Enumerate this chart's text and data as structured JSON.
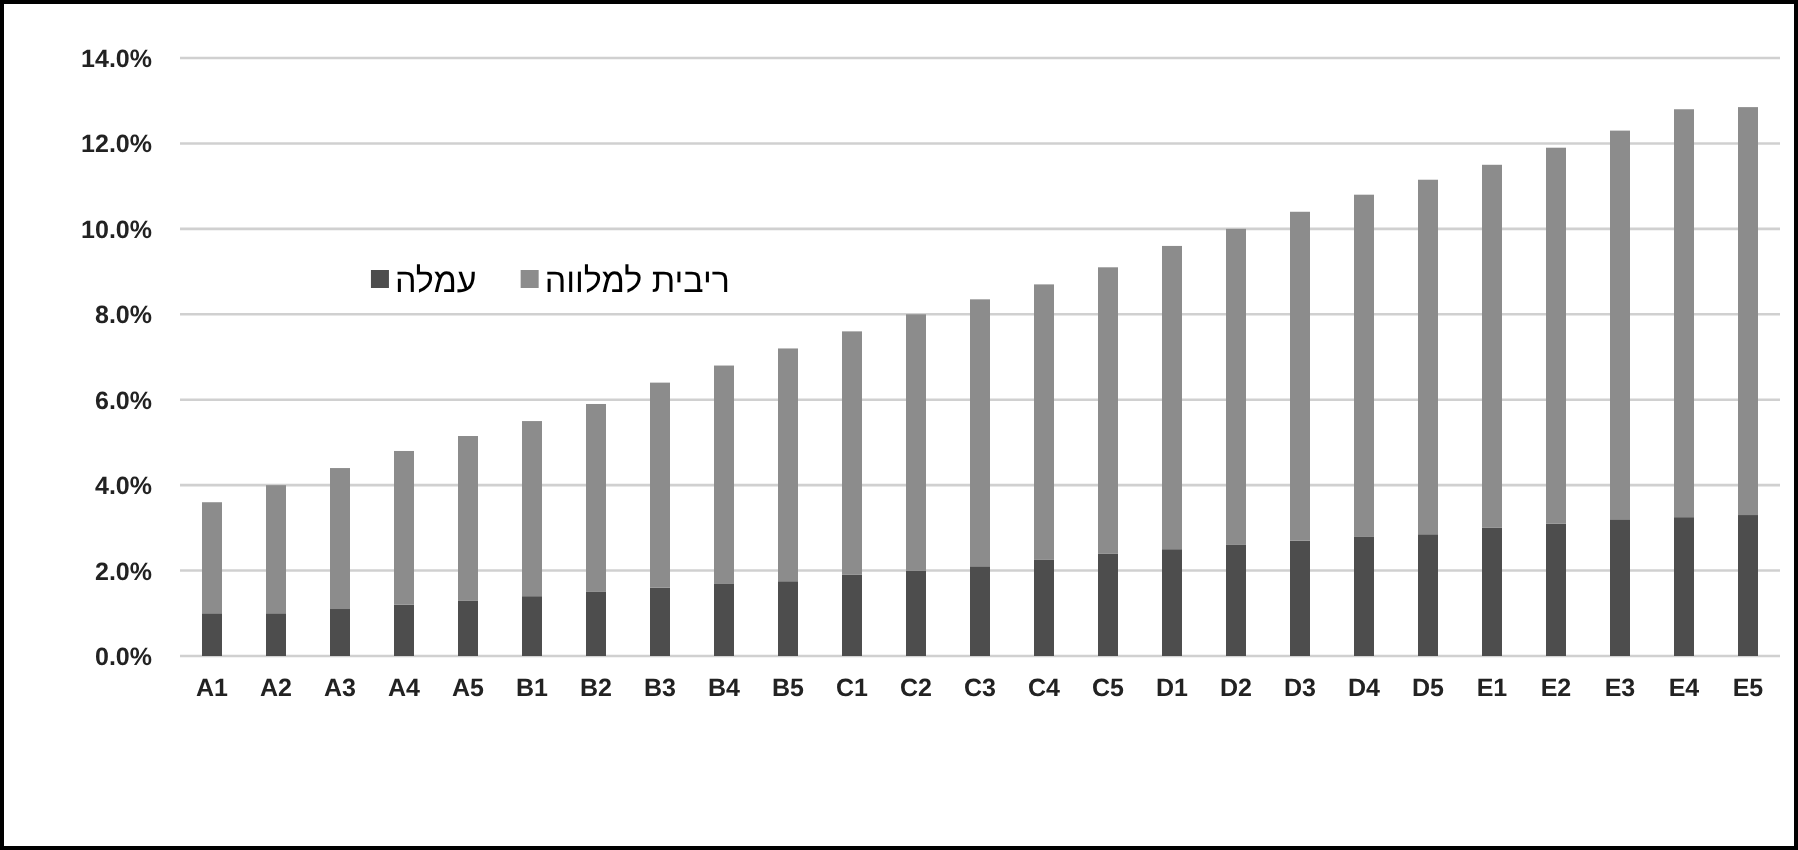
{
  "chart_data": {
    "type": "bar",
    "stacked": true,
    "categories": [
      "A1",
      "A2",
      "A3",
      "A4",
      "A5",
      "B1",
      "B2",
      "B3",
      "B4",
      "B5",
      "C1",
      "C2",
      "C3",
      "C4",
      "C5",
      "D1",
      "D2",
      "D3",
      "D4",
      "D5",
      "E1",
      "E2",
      "E3",
      "E4",
      "E5"
    ],
    "series": [
      {
        "name": "עמלה",
        "color": "#4d4d4d",
        "values": [
          1.0,
          1.0,
          1.1,
          1.2,
          1.3,
          1.4,
          1.5,
          1.6,
          1.7,
          1.75,
          1.9,
          2.0,
          2.1,
          2.25,
          2.4,
          2.5,
          2.6,
          2.7,
          2.8,
          2.85,
          3.0,
          3.1,
          3.2,
          3.25,
          3.3
        ]
      },
      {
        "name": "ריבית למלווה",
        "color": "#8c8c8c",
        "values": [
          2.6,
          3.0,
          3.3,
          3.6,
          3.85,
          4.1,
          4.4,
          4.8,
          5.1,
          5.45,
          5.7,
          6.0,
          6.25,
          6.45,
          6.7,
          7.1,
          7.4,
          7.7,
          8.0,
          8.3,
          8.5,
          8.8,
          9.1,
          9.55,
          9.55
        ]
      }
    ],
    "ylim": [
      0,
      14
    ],
    "yticks": [
      {
        "value": 0,
        "label": "0.0%"
      },
      {
        "value": 2,
        "label": "2.0%"
      },
      {
        "value": 4,
        "label": "4.0%"
      },
      {
        "value": 6,
        "label": "6.0%"
      },
      {
        "value": 8,
        "label": "8.0%"
      },
      {
        "value": 10,
        "label": "10.0%"
      },
      {
        "value": 12,
        "label": "12.0%"
      },
      {
        "value": 14,
        "label": "14.0%"
      }
    ],
    "grid": "y",
    "legend": "top left"
  }
}
